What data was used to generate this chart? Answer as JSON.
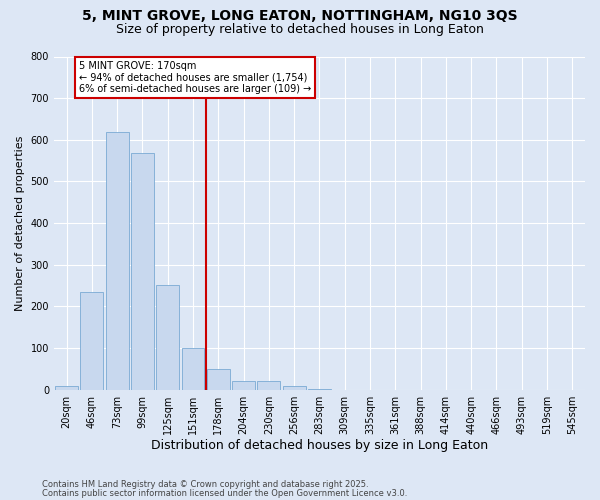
{
  "title1": "5, MINT GROVE, LONG EATON, NOTTINGHAM, NG10 3QS",
  "title2": "Size of property relative to detached houses in Long Eaton",
  "xlabel": "Distribution of detached houses by size in Long Eaton",
  "ylabel": "Number of detached properties",
  "bar_labels": [
    "20sqm",
    "46sqm",
    "73sqm",
    "99sqm",
    "125sqm",
    "151sqm",
    "178sqm",
    "204sqm",
    "230sqm",
    "256sqm",
    "283sqm",
    "309sqm",
    "335sqm",
    "361sqm",
    "388sqm",
    "414sqm",
    "440sqm",
    "466sqm",
    "493sqm",
    "519sqm",
    "545sqm"
  ],
  "bar_values": [
    10,
    234,
    619,
    568,
    251,
    100,
    50,
    22,
    22,
    8,
    2,
    0,
    0,
    0,
    0,
    0,
    0,
    0,
    0,
    0,
    0
  ],
  "bar_color": "#c8d8ee",
  "bar_edge_color": "#7aaad4",
  "bg_color": "#dde7f5",
  "plot_bg_color": "#dde7f5",
  "grid_color": "#ffffff",
  "vline_color": "#cc0000",
  "vline_x": 5.5,
  "annotation_line1": "5 MINT GROVE: 170sqm",
  "annotation_line2": "← 94% of detached houses are smaller (1,754)",
  "annotation_line3": "6% of semi-detached houses are larger (109) →",
  "annotation_box_color": "#ffffff",
  "annotation_box_edge": "#cc0000",
  "ylim": [
    0,
    800
  ],
  "yticks": [
    0,
    100,
    200,
    300,
    400,
    500,
    600,
    700,
    800
  ],
  "footer1": "Contains HM Land Registry data © Crown copyright and database right 2025.",
  "footer2": "Contains public sector information licensed under the Open Government Licence v3.0.",
  "title1_fontsize": 10,
  "title2_fontsize": 9,
  "tick_fontsize": 7,
  "ylabel_fontsize": 8,
  "xlabel_fontsize": 9,
  "footer_fontsize": 6
}
